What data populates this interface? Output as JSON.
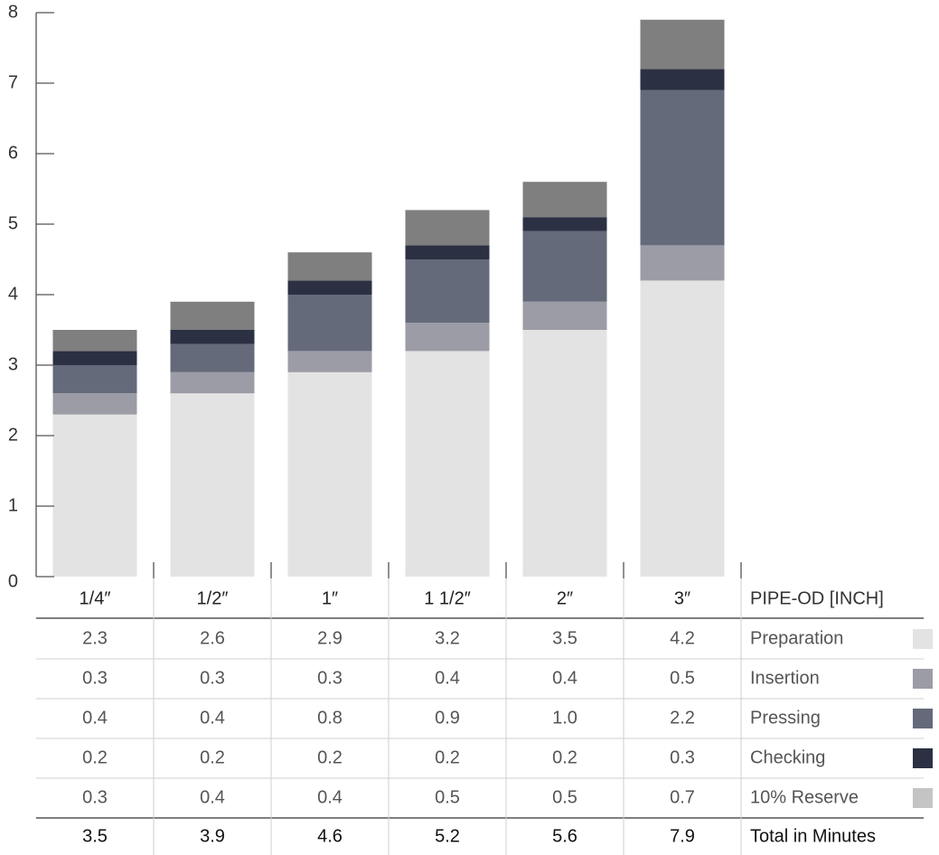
{
  "chart_data": {
    "type": "bar",
    "stacked": true,
    "categories": [
      "1/4″",
      "1/2″",
      "1″",
      "1 1/2″",
      "2″",
      "3″"
    ],
    "x_header": "PIPE-OD [INCH]",
    "ylim": [
      0,
      8
    ],
    "yticks": [
      0,
      1,
      2,
      3,
      4,
      5,
      6,
      7,
      8
    ],
    "series": [
      {
        "name": "Preparation",
        "color": "#e3e3e3",
        "values": [
          2.3,
          2.6,
          2.9,
          3.2,
          3.5,
          4.2
        ],
        "labels": [
          "2.3",
          "2.6",
          "2.9",
          "3.2",
          "3.5",
          "4.2"
        ]
      },
      {
        "name": "Insertion",
        "color": "#9c9ca6",
        "values": [
          0.3,
          0.3,
          0.3,
          0.4,
          0.4,
          0.5
        ],
        "labels": [
          "0.3",
          "0.3",
          "0.3",
          "0.4",
          "0.4",
          "0.5"
        ]
      },
      {
        "name": "Pressing",
        "color": "#646a7a",
        "values": [
          0.4,
          0.4,
          0.8,
          0.9,
          1.0,
          2.2
        ],
        "labels": [
          "0.4",
          "0.4",
          "0.8",
          "0.9",
          "1.0",
          "2.2"
        ]
      },
      {
        "name": "Checking",
        "color": "#2b3143",
        "values": [
          0.2,
          0.2,
          0.2,
          0.2,
          0.2,
          0.3
        ],
        "labels": [
          "0.2",
          "0.2",
          "0.2",
          "0.2",
          "0.2",
          "0.3"
        ]
      },
      {
        "name": "10% Reserve",
        "color": "#7f7f7f",
        "legend_color": "#c4c4c4",
        "values": [
          0.3,
          0.4,
          0.4,
          0.5,
          0.5,
          0.7
        ],
        "labels": [
          "0.3",
          "0.4",
          "0.4",
          "0.5",
          "0.5",
          "0.7"
        ]
      }
    ],
    "totals": {
      "name": "Total in Minutes",
      "values": [
        "3.5",
        "3.9",
        "4.6",
        "5.2",
        "5.6",
        "7.9"
      ]
    }
  }
}
